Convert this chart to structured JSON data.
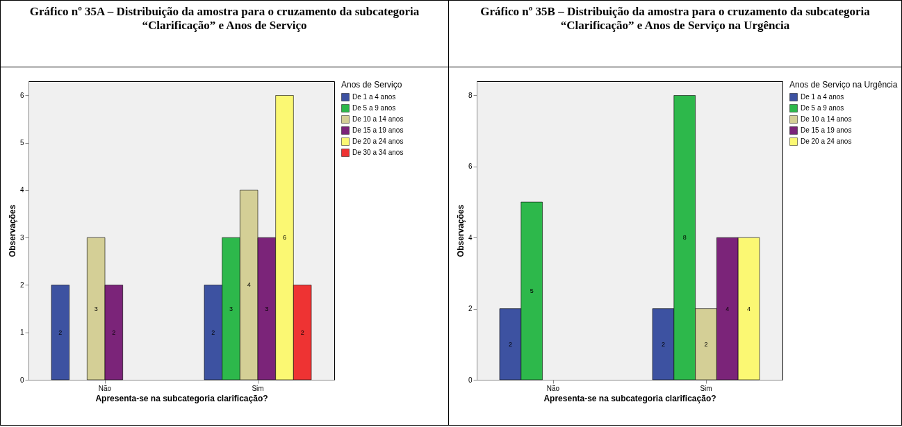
{
  "chart_data": [
    {
      "type": "bar",
      "title": "Gráfico nº 35A – Distribuição da amostra para o cruzamento da subcategoria “Clarificação” e Anos de Serviço",
      "xlabel": "Apresenta-se na subcategoria clarificação?",
      "ylabel": "Observações",
      "legend_title": "Anos de Serviço",
      "legend": "right",
      "categories": [
        "Não",
        "Sim"
      ],
      "ylim": [
        0,
        6.3
      ],
      "yticks": [
        0,
        1,
        2,
        3,
        4,
        5,
        6
      ],
      "data_labels": true,
      "series": [
        {
          "name": "De 1 a 4 anos",
          "color": "#3d52a1",
          "values": [
            2,
            2
          ]
        },
        {
          "name": "De 5 a 9 anos",
          "color": "#2db84b",
          "values": [
            null,
            3
          ]
        },
        {
          "name": "De 10 a 14 anos",
          "color": "#d4cf96",
          "values": [
            3,
            4
          ]
        },
        {
          "name": "De 15 a 19 anos",
          "color": "#7b2479",
          "values": [
            2,
            3
          ]
        },
        {
          "name": "De 20 a 24 anos",
          "color": "#fbf873",
          "values": [
            null,
            6
          ]
        },
        {
          "name": "De 30 a 34 anos",
          "color": "#ee3333",
          "values": [
            null,
            2
          ]
        }
      ]
    },
    {
      "type": "bar",
      "title": "Gráfico nº 35B – Distribuição da amostra para o cruzamento da subcategoria “Clarificação” e Anos de Serviço na Urgência",
      "xlabel": "Apresenta-se na subcategoria clarificação?",
      "ylabel": "Observações",
      "legend_title": "Anos de Serviço na Urgência",
      "legend": "right",
      "categories": [
        "Não",
        "Sim"
      ],
      "ylim": [
        0,
        8.4
      ],
      "yticks": [
        0,
        2,
        4,
        6,
        8
      ],
      "data_labels": true,
      "series": [
        {
          "name": "De 1 a 4 anos",
          "color": "#3d52a1",
          "values": [
            2,
            2
          ]
        },
        {
          "name": "De 5 a 9 anos",
          "color": "#2db84b",
          "values": [
            5,
            8
          ]
        },
        {
          "name": "De 10 a 14 anos",
          "color": "#d4cf96",
          "values": [
            null,
            2
          ]
        },
        {
          "name": "De 15 a 19 anos",
          "color": "#7b2479",
          "values": [
            null,
            4
          ]
        },
        {
          "name": "De 20 a 24 anos",
          "color": "#fbf873",
          "values": [
            null,
            4
          ]
        }
      ]
    }
  ]
}
